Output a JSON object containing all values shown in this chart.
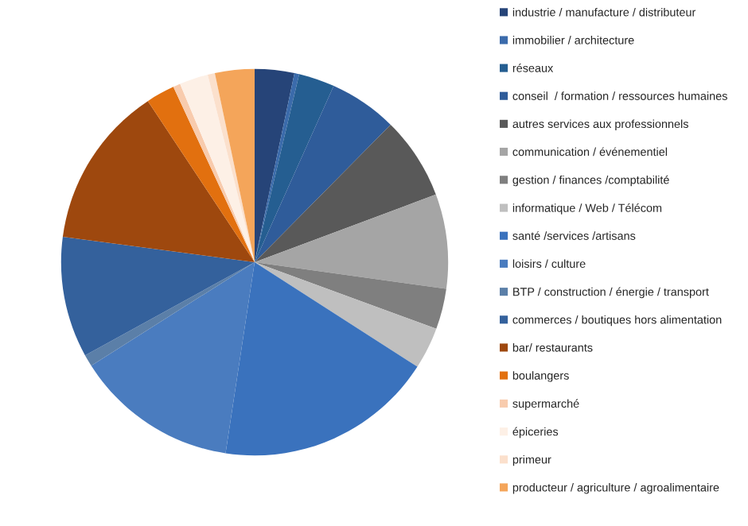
{
  "chart_data": {
    "type": "pie",
    "categories": [
      "industrie / manufacture / distributeur",
      "immobilier / architecture",
      "réseaux",
      "conseil  / formation / ressources humaines",
      "autres services aux professionnels",
      "communication / événementiel",
      "gestion / finances /comptabilité",
      "informatique / Web / Télécom",
      "santé /services /artisans",
      "loisirs / culture",
      "BTP / construction / énergie / transport",
      "commerces / boutiques hors alimentation",
      "bar/ restaurants",
      "boulangers",
      "supermarché",
      "épiceries",
      "primeur",
      "producteur / agriculture / agroalimentaire"
    ],
    "values": [
      3.3,
      0.4,
      3.0,
      5.7,
      6.9,
      7.9,
      3.4,
      3.5,
      18.3,
      13.6,
      1.0,
      10.1,
      13.6,
      2.4,
      0.6,
      2.4,
      0.6,
      3.3
    ],
    "colors": [
      "#264478",
      "#3b6bab",
      "#255e91",
      "#2f5c9a",
      "#595959",
      "#a5a5a5",
      "#7f7f7f",
      "#bfbfbf",
      "#3a72bd",
      "#4a7cbf",
      "#5b7fa8",
      "#34619c",
      "#9e480e",
      "#e2700f",
      "#f8cbad",
      "#fdf0e6",
      "#fbe0cc",
      "#f4a55a"
    ],
    "legend": "right"
  }
}
